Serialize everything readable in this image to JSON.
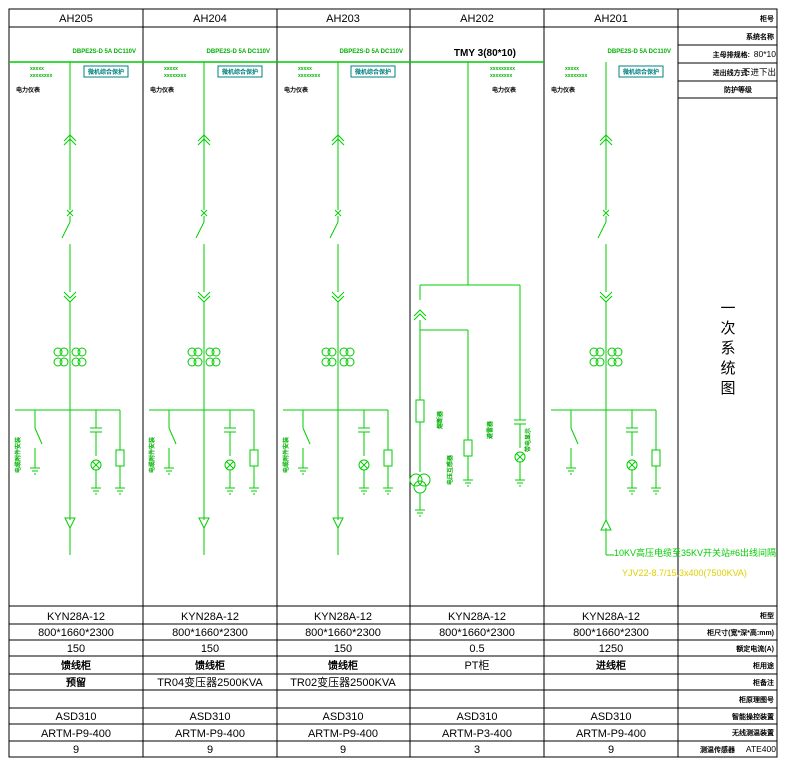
{
  "cabinets": [
    {
      "id": "AH205",
      "model": "KYN28A-12",
      "dims": "800*1660*2300",
      "current": "150",
      "usage": "馈线柜",
      "circuit": "预留",
      "control": "ASD310",
      "temp": "ARTM-P9-400",
      "sensors": "9"
    },
    {
      "id": "AH204",
      "model": "KYN28A-12",
      "dims": "800*1660*2300",
      "current": "150",
      "usage": "馈线柜",
      "circuit": "TR04变压器2500KVA",
      "control": "ASD310",
      "temp": "ARTM-P9-400",
      "sensors": "9"
    },
    {
      "id": "AH203",
      "model": "KYN28A-12",
      "dims": "800*1660*2300",
      "current": "150",
      "usage": "馈线柜",
      "circuit": "TR02变压器2500KVA",
      "control": "ASD310",
      "temp": "ARTM-P9-400",
      "sensors": "9"
    },
    {
      "id": "AH202",
      "model": "KYN28A-12",
      "dims": "800*1660*2300",
      "current": "0.5",
      "usage": "PT柜",
      "circuit": "",
      "control": "ASD310",
      "temp": "ARTM-P3-400",
      "sensors": "3"
    },
    {
      "id": "AH201",
      "model": "KYN28A-12",
      "dims": "800*1660*2300",
      "current": "1250",
      "usage": "进线柜",
      "circuit": "",
      "control": "ASD310",
      "temp": "ARTM-P9-400",
      "sensors": "9"
    }
  ],
  "side_top": {
    "row1": "柜号",
    "row2": "系统名称",
    "row3_label": "主母排规格:",
    "row3_value": "80*10",
    "row4_label": "进出线方式:",
    "row4_value": "下进下出",
    "row5": "防护等级"
  },
  "title_chars": [
    "一",
    "次",
    "系",
    "统",
    "图"
  ],
  "side_bottom": {
    "model": "柜型",
    "dims": "柜尺寸(宽*深*高:mm)",
    "current": "额定电流(A)",
    "usage": "柜用途",
    "circuit": "柜备注",
    "drawing": "柜原理图号",
    "control": "智能操控装置",
    "temp": "无线测温装置",
    "sensors_label": "测温传感器",
    "sensors_value": "ATE400"
  },
  "busbar": "TMY 3(80*10)",
  "dc_labels": [
    "DBPE2S-D 5A DC110V",
    "DBPE2S-D 5A DC110V",
    "DBPE2S-D 5A DC110V",
    "DBPE2S-D 5A DC110V"
  ],
  "protect_labels": [
    "微机综合保护",
    "微机综合保护",
    "微机综合保护",
    "微机综合保护"
  ],
  "meter_labels": [
    "电力仪表",
    "电力仪表",
    "电力仪表",
    "电力仪表",
    "电力仪表"
  ],
  "left_labels": [
    "电缆附件安装",
    "电缆附件安装",
    "电缆附件安装"
  ],
  "pt_labels": [
    "熔断器",
    "电压互感器",
    "避雷器",
    "带电显示"
  ],
  "cable_line1": "10KV高压电缆至35KV开关站#6出线间隔",
  "cable_line2": "YJV22-8.7/15,3x400(7500KVA)",
  "colors": {
    "bus": "#00cc00",
    "text_green": "#00b000",
    "cyan": "#008080",
    "line": "#000000"
  }
}
